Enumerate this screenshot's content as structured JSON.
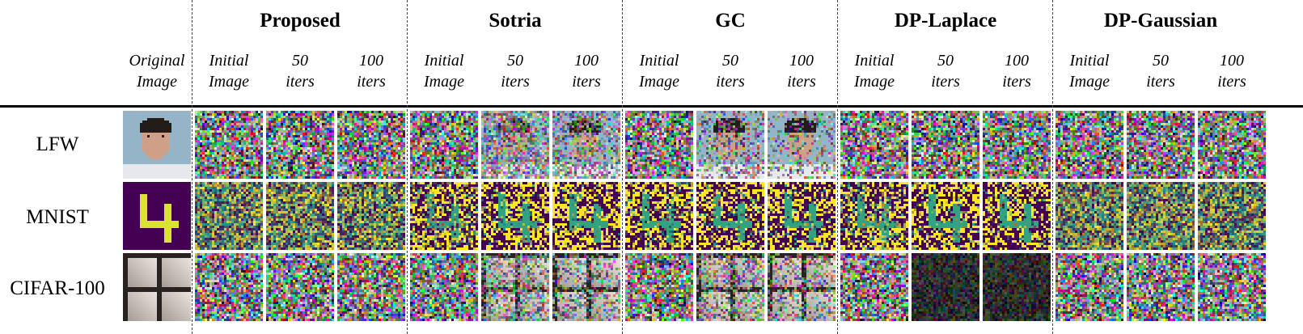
{
  "columns": {
    "original": "Original\nImage",
    "sub_labels": [
      "Initial\nImage",
      "50\niters",
      "100\niters"
    ]
  },
  "methods": [
    "Proposed",
    "Sotria",
    "GC",
    "DP-Laplace",
    "DP-Gaussian"
  ],
  "datasets": [
    "LFW",
    "MNIST",
    "CIFAR-100"
  ],
  "colors": {
    "mnist_background": "#440154",
    "mnist_digit": "#fde725",
    "mnist_mid": "#21918c"
  },
  "reconstruction_level": {
    "LFW": {
      "Proposed": [
        0,
        0,
        0
      ],
      "Sotria": [
        0,
        0.15,
        0.3
      ],
      "GC": [
        0,
        0.45,
        0.6
      ],
      "DP-Laplace": [
        0,
        0,
        0
      ],
      "DP-Gaussian": [
        0,
        0,
        0
      ]
    },
    "MNIST": {
      "Proposed": [
        0,
        0.05,
        0.1
      ],
      "Sotria": [
        0.6,
        0.8,
        0.8
      ],
      "GC": [
        0.7,
        0.8,
        0.8
      ],
      "DP-Laplace": [
        0.6,
        0.8,
        0.8
      ],
      "DP-Gaussian": [
        0,
        0,
        0
      ]
    },
    "CIFAR-100": {
      "Proposed": [
        0,
        0,
        0
      ],
      "Sotria": [
        0,
        0.35,
        0.45
      ],
      "GC": [
        0,
        0.35,
        0.45
      ],
      "DP-Laplace": [
        0,
        0,
        0
      ],
      "DP-Gaussian": [
        0,
        0,
        0
      ]
    }
  }
}
